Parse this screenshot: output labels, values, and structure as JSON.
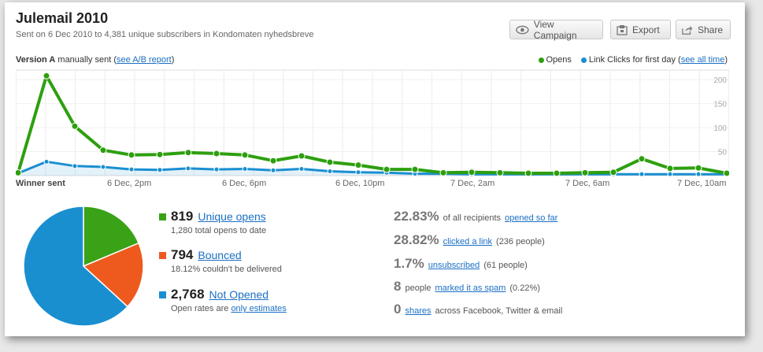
{
  "header": {
    "title": "Julemail 2010",
    "subtitle": "Sent on 6 Dec 2010 to 4,381 unique subscribers in Kondomaten nyhedsbreve"
  },
  "toolbar": {
    "view_campaign": "View Campaign",
    "export": "Export",
    "share": "Share"
  },
  "chart_header": {
    "version_bold": "Version A",
    "version_text": "manually sent",
    "ab_prefix": "(",
    "ab_link": "see A/B report",
    "ab_suffix": ")",
    "legend_opens": "Opens",
    "legend_clicks": "Link Clicks for first day",
    "all_prefix": "(",
    "all_link": "see all time",
    "all_suffix": ")"
  },
  "colors": {
    "opens": "#2d9f0f",
    "clicks": "#1a8fd0",
    "bounced": "#ee5a1e",
    "not_opened": "#1a8fd0",
    "unique_opens": "#3aa216"
  },
  "chart_data": {
    "type": "line",
    "x_labels": [
      "Winner sent",
      "6 Dec, 2pm",
      "6 Dec, 6pm",
      "6 Dec, 10pm",
      "7 Dec, 2am",
      "7 Dec, 6am",
      "7 Dec, 10am"
    ],
    "y_ticks": [
      "50",
      "100",
      "150",
      "200"
    ],
    "ylim": [
      0,
      220
    ],
    "series": [
      {
        "name": "Opens",
        "values": [
          6,
          208,
          103,
          53,
          43,
          44,
          48,
          46,
          43,
          31,
          41,
          28,
          22,
          13,
          13,
          6,
          7,
          6,
          5,
          5,
          6,
          7,
          35,
          15,
          16,
          5
        ]
      },
      {
        "name": "Link Clicks for first day",
        "values": [
          5,
          29,
          20,
          18,
          13,
          12,
          15,
          13,
          14,
          11,
          14,
          9,
          7,
          6,
          4,
          4,
          3,
          3,
          3,
          3,
          3,
          3,
          3,
          3,
          3,
          3
        ]
      }
    ]
  },
  "pie": {
    "unique_opens": 819,
    "bounced": 794,
    "not_opened": 2768
  },
  "stats": {
    "opens": {
      "num": "819",
      "label": "Unique opens",
      "sub": "1,280 total opens to date"
    },
    "bounced": {
      "num": "794",
      "label": "Bounced",
      "sub": "18.12% couldn't be delivered"
    },
    "not_opened": {
      "num": "2,768",
      "label": "Not Opened",
      "sub_prefix": "Open rates are",
      "sub_link": "only estimates"
    }
  },
  "metrics": {
    "opened": {
      "num": "22.83%",
      "prefix": "of all recipients",
      "link": "opened so far",
      "suffix": ""
    },
    "clicked": {
      "num": "28.82%",
      "prefix": "",
      "link": "clicked a link",
      "suffix": "(236 people)"
    },
    "unsubscribed": {
      "num": "1.7%",
      "prefix": "",
      "link": "unsubscribed",
      "suffix": "(61 people)"
    },
    "spam": {
      "num": "8",
      "prefix": "people",
      "link": "marked it as spam",
      "suffix": "(0.22%)"
    },
    "shares": {
      "num": "0",
      "prefix": "",
      "link": "shares",
      "suffix": "across Facebook, Twitter & email"
    }
  }
}
